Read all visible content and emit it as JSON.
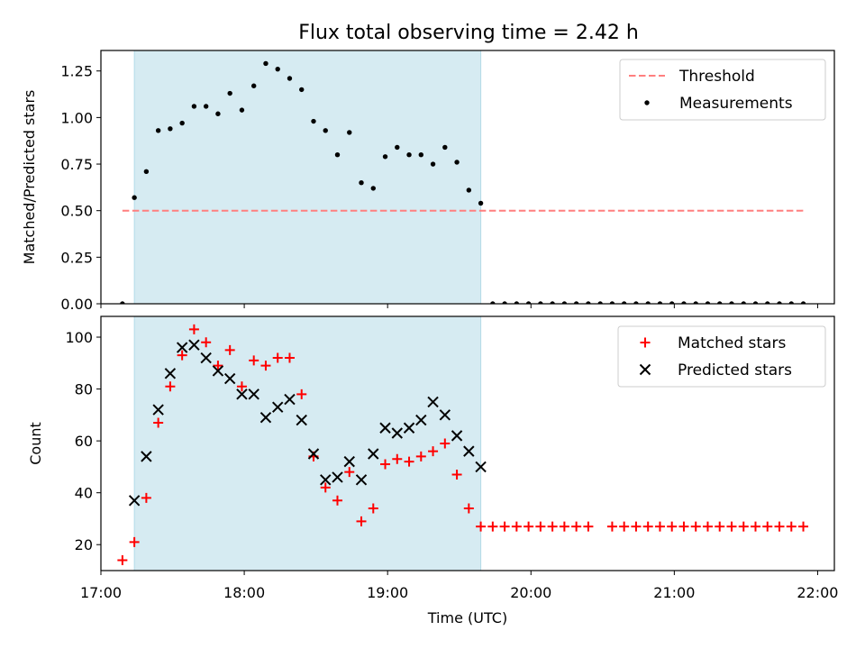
{
  "title": "Flux total observing time = 2.42 h",
  "colors": {
    "threshold": "#ff7f7f",
    "measurements": "#000000",
    "matched": "#ff0000",
    "predicted": "#000000",
    "shade": "#add8e6"
  },
  "chart_data": [
    {
      "type": "scatter",
      "panel": "top",
      "ylabel": "Matched/Predicted stars",
      "xlim": [
        "17:00",
        "22:07"
      ],
      "ylim": [
        0,
        1.36
      ],
      "yticks": [
        0.0,
        0.25,
        0.5,
        0.75,
        1.0,
        1.25
      ],
      "ytick_labels": [
        "0.00",
        "0.25",
        "0.50",
        "0.75",
        "1.00",
        "1.25"
      ],
      "xtick_labels": [
        "17:00",
        "18:00",
        "19:00",
        "20:00",
        "21:00",
        "22:00"
      ],
      "shaded_interval": [
        "17:14",
        "19:39"
      ],
      "legend_position": "upper right",
      "threshold": {
        "name": "Threshold",
        "value": 0.5,
        "x_range": [
          "17:09",
          "21:54"
        ],
        "style": "dashed"
      },
      "series": [
        {
          "name": "Measurements",
          "points": [
            [
              "17:09",
              0.0
            ],
            [
              "17:14",
              0.57
            ],
            [
              "17:19",
              0.71
            ],
            [
              "17:24",
              0.93
            ],
            [
              "17:29",
              0.94
            ],
            [
              "17:34",
              0.97
            ],
            [
              "17:39",
              1.06
            ],
            [
              "17:44",
              1.06
            ],
            [
              "17:49",
              1.02
            ],
            [
              "17:54",
              1.13
            ],
            [
              "17:59",
              1.04
            ],
            [
              "18:04",
              1.17
            ],
            [
              "18:09",
              1.29
            ],
            [
              "18:14",
              1.26
            ],
            [
              "18:19",
              1.21
            ],
            [
              "18:24",
              1.15
            ],
            [
              "18:29",
              0.98
            ],
            [
              "18:34",
              0.93
            ],
            [
              "18:39",
              0.8
            ],
            [
              "18:44",
              0.92
            ],
            [
              "18:49",
              0.65
            ],
            [
              "18:54",
              0.62
            ],
            [
              "18:59",
              0.79
            ],
            [
              "19:04",
              0.84
            ],
            [
              "19:09",
              0.8
            ],
            [
              "19:14",
              0.8
            ],
            [
              "19:19",
              0.75
            ],
            [
              "19:24",
              0.84
            ],
            [
              "19:29",
              0.76
            ],
            [
              "19:34",
              0.61
            ],
            [
              "19:39",
              0.54
            ],
            [
              "19:44",
              0.0
            ],
            [
              "19:49",
              0.0
            ],
            [
              "19:54",
              0.0
            ],
            [
              "19:59",
              0.0
            ],
            [
              "20:04",
              0.0
            ],
            [
              "20:09",
              0.0
            ],
            [
              "20:14",
              0.0
            ],
            [
              "20:19",
              0.0
            ],
            [
              "20:24",
              0.0
            ],
            [
              "20:29",
              0.0
            ],
            [
              "20:34",
              0.0
            ],
            [
              "20:39",
              0.0
            ],
            [
              "20:44",
              0.0
            ],
            [
              "20:49",
              0.0
            ],
            [
              "20:54",
              0.0
            ],
            [
              "20:59",
              0.0
            ],
            [
              "21:04",
              0.0
            ],
            [
              "21:09",
              0.0
            ],
            [
              "21:14",
              0.0
            ],
            [
              "21:19",
              0.0
            ],
            [
              "21:24",
              0.0
            ],
            [
              "21:29",
              0.0
            ],
            [
              "21:34",
              0.0
            ],
            [
              "21:39",
              0.0
            ],
            [
              "21:44",
              0.0
            ],
            [
              "21:49",
              0.0
            ],
            [
              "21:54",
              0.0
            ]
          ]
        }
      ]
    },
    {
      "type": "scatter",
      "panel": "bottom",
      "xlabel": "Time (UTC)",
      "ylabel": "Count",
      "xlim": [
        "17:00",
        "22:07"
      ],
      "ylim": [
        10,
        108
      ],
      "yticks": [
        20,
        40,
        60,
        80,
        100
      ],
      "ytick_labels": [
        "20",
        "40",
        "60",
        "80",
        "100"
      ],
      "xtick_labels": [
        "17:00",
        "18:00",
        "19:00",
        "20:00",
        "21:00",
        "22:00"
      ],
      "shaded_interval": [
        "17:14",
        "19:39"
      ],
      "legend_position": "upper right",
      "series": [
        {
          "name": "Matched stars",
          "marker": "plus",
          "points": [
            [
              "17:09",
              14
            ],
            [
              "17:14",
              21
            ],
            [
              "17:19",
              38
            ],
            [
              "17:24",
              67
            ],
            [
              "17:29",
              81
            ],
            [
              "17:34",
              93
            ],
            [
              "17:39",
              103
            ],
            [
              "17:44",
              98
            ],
            [
              "17:49",
              89
            ],
            [
              "17:54",
              95
            ],
            [
              "17:59",
              81
            ],
            [
              "18:04",
              91
            ],
            [
              "18:09",
              89
            ],
            [
              "18:14",
              92
            ],
            [
              "18:19",
              92
            ],
            [
              "18:24",
              78
            ],
            [
              "18:29",
              54
            ],
            [
              "18:34",
              42
            ],
            [
              "18:39",
              37
            ],
            [
              "18:44",
              48
            ],
            [
              "18:49",
              29
            ],
            [
              "18:54",
              34
            ],
            [
              "18:59",
              51
            ],
            [
              "19:04",
              53
            ],
            [
              "19:09",
              52
            ],
            [
              "19:14",
              54
            ],
            [
              "19:19",
              56
            ],
            [
              "19:24",
              59
            ],
            [
              "19:29",
              47
            ],
            [
              "19:34",
              34
            ],
            [
              "19:39",
              27
            ],
            [
              "19:44",
              27
            ],
            [
              "19:49",
              27
            ],
            [
              "19:54",
              27
            ],
            [
              "19:59",
              27
            ],
            [
              "20:04",
              27
            ],
            [
              "20:09",
              27
            ],
            [
              "20:14",
              27
            ],
            [
              "20:19",
              27
            ],
            [
              "20:24",
              27
            ],
            [
              "20:34",
              27
            ],
            [
              "20:39",
              27
            ],
            [
              "20:44",
              27
            ],
            [
              "20:49",
              27
            ],
            [
              "20:54",
              27
            ],
            [
              "20:59",
              27
            ],
            [
              "21:04",
              27
            ],
            [
              "21:09",
              27
            ],
            [
              "21:14",
              27
            ],
            [
              "21:19",
              27
            ],
            [
              "21:24",
              27
            ],
            [
              "21:29",
              27
            ],
            [
              "21:34",
              27
            ],
            [
              "21:39",
              27
            ],
            [
              "21:44",
              27
            ],
            [
              "21:49",
              27
            ],
            [
              "21:54",
              27
            ]
          ]
        },
        {
          "name": "Predicted stars",
          "marker": "x",
          "points": [
            [
              "17:14",
              37
            ],
            [
              "17:19",
              54
            ],
            [
              "17:24",
              72
            ],
            [
              "17:29",
              86
            ],
            [
              "17:34",
              96
            ],
            [
              "17:39",
              97
            ],
            [
              "17:44",
              92
            ],
            [
              "17:49",
              87
            ],
            [
              "17:54",
              84
            ],
            [
              "17:59",
              78
            ],
            [
              "18:04",
              78
            ],
            [
              "18:09",
              69
            ],
            [
              "18:14",
              73
            ],
            [
              "18:19",
              76
            ],
            [
              "18:24",
              68
            ],
            [
              "18:29",
              55
            ],
            [
              "18:34",
              45
            ],
            [
              "18:39",
              46
            ],
            [
              "18:44",
              52
            ],
            [
              "18:49",
              45
            ],
            [
              "18:54",
              55
            ],
            [
              "18:59",
              65
            ],
            [
              "19:04",
              63
            ],
            [
              "19:09",
              65
            ],
            [
              "19:14",
              68
            ],
            [
              "19:19",
              75
            ],
            [
              "19:24",
              70
            ],
            [
              "19:29",
              62
            ],
            [
              "19:34",
              56
            ],
            [
              "19:39",
              50
            ]
          ]
        }
      ]
    }
  ]
}
